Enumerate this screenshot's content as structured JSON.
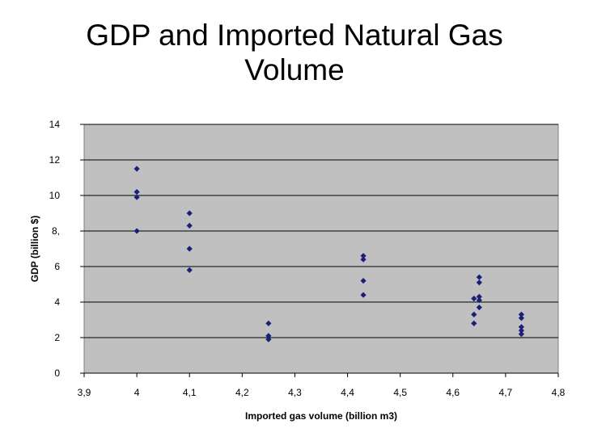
{
  "slide": {
    "title": "GDP and Imported Natural Gas Volume"
  },
  "chart_data": {
    "type": "scatter",
    "xlabel": "Imported gas volume (billion m3)",
    "ylabel": "GDP  (billion $)",
    "xlim": [
      3.9,
      4.8
    ],
    "ylim": [
      0,
      14
    ],
    "x_tick_labels": [
      "3,9",
      "4",
      "4,1",
      "4,2",
      "4,3",
      "4,4",
      "4,5",
      "4,6",
      "4,7",
      "4,8"
    ],
    "y_tick_labels": [
      "0",
      "2",
      "4",
      "6",
      "8,",
      "10",
      "12",
      "14"
    ],
    "grid": true,
    "plot_background": "#c0c0c0",
    "marker_color": "#1a1f7a",
    "points": [
      {
        "x": 4.0,
        "y": 11.5
      },
      {
        "x": 4.0,
        "y": 10.2
      },
      {
        "x": 4.0,
        "y": 9.9
      },
      {
        "x": 4.0,
        "y": 8.0
      },
      {
        "x": 4.1,
        "y": 9.0
      },
      {
        "x": 4.1,
        "y": 8.3
      },
      {
        "x": 4.1,
        "y": 7.0
      },
      {
        "x": 4.1,
        "y": 5.8
      },
      {
        "x": 4.25,
        "y": 2.8
      },
      {
        "x": 4.25,
        "y": 2.1
      },
      {
        "x": 4.25,
        "y": 1.9
      },
      {
        "x": 4.43,
        "y": 6.6
      },
      {
        "x": 4.43,
        "y": 6.4
      },
      {
        "x": 4.43,
        "y": 5.2
      },
      {
        "x": 4.43,
        "y": 4.4
      },
      {
        "x": 4.64,
        "y": 4.2
      },
      {
        "x": 4.64,
        "y": 3.3
      },
      {
        "x": 4.64,
        "y": 2.8
      },
      {
        "x": 4.65,
        "y": 5.4
      },
      {
        "x": 4.65,
        "y": 5.1
      },
      {
        "x": 4.65,
        "y": 4.3
      },
      {
        "x": 4.65,
        "y": 4.1
      },
      {
        "x": 4.65,
        "y": 3.7
      },
      {
        "x": 4.73,
        "y": 3.3
      },
      {
        "x": 4.73,
        "y": 3.1
      },
      {
        "x": 4.73,
        "y": 2.6
      },
      {
        "x": 4.73,
        "y": 2.4
      },
      {
        "x": 4.73,
        "y": 2.2
      }
    ]
  }
}
